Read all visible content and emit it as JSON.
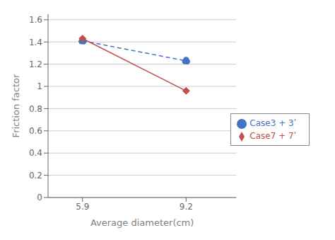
{
  "chart_data": {
    "type": "line",
    "x": [
      5.9,
      9.2
    ],
    "series": [
      {
        "name": "Case3 + 3ʹ",
        "color": "#4472C4",
        "values": [
          1.41,
          1.23
        ],
        "marker": "circle",
        "line_style": "dashed"
      },
      {
        "name": "Case7 + 7ʹ",
        "color": "#C0504D",
        "values": [
          1.43,
          0.96
        ],
        "marker": "diamond",
        "line_style": "solid"
      }
    ],
    "xlabel": "Average  diameter(cm)",
    "ylabel": "Friction  factor",
    "xlim": [
      4.8,
      10.8
    ],
    "xticks": [
      5.9,
      9.2
    ],
    "ylim": [
      0,
      1.65
    ],
    "yticks": [
      0,
      0.2,
      0.4,
      0.6,
      0.8,
      1,
      1.2,
      1.4,
      1.6
    ],
    "grid": true,
    "legend": "right"
  }
}
